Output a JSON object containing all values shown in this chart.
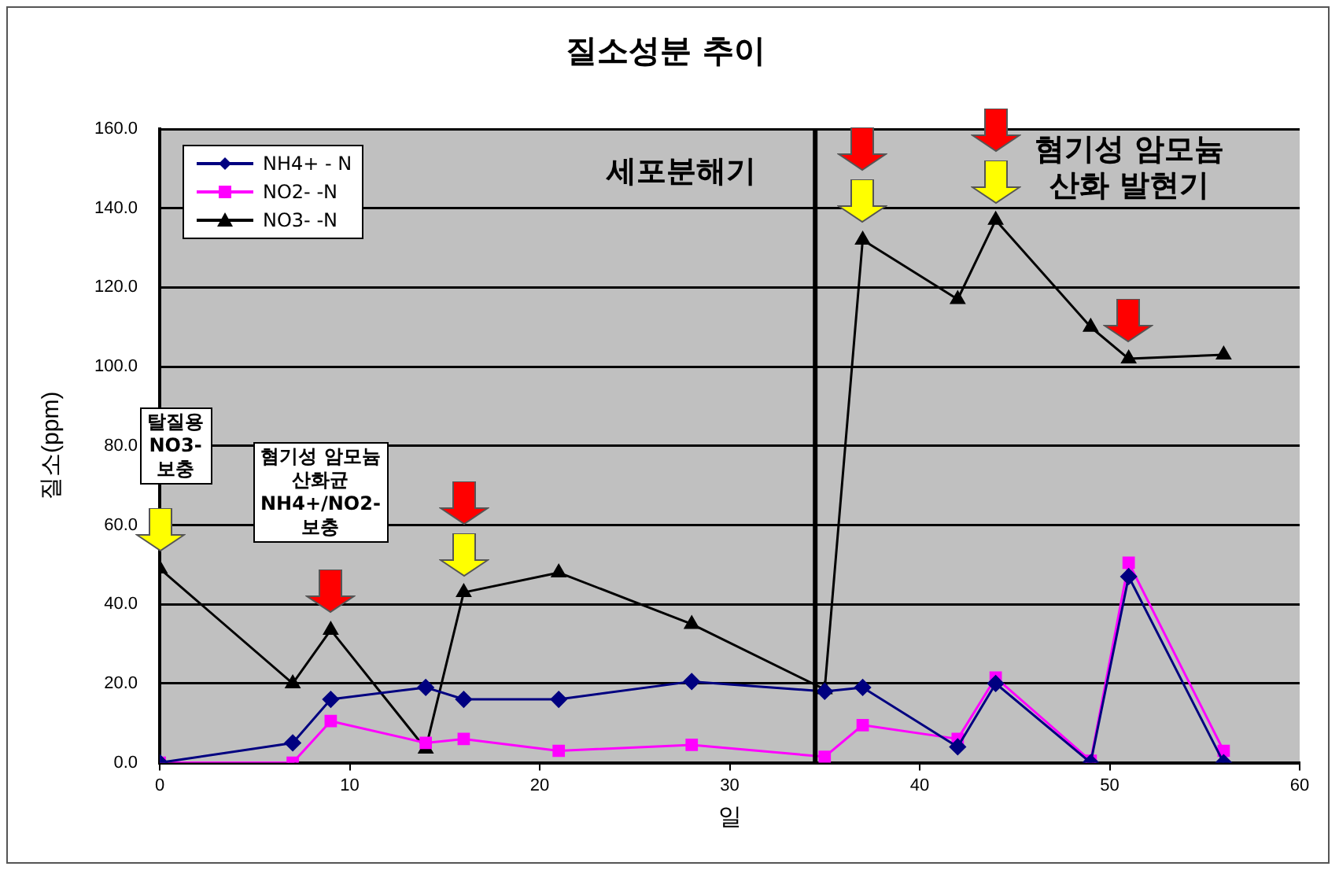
{
  "chart_data": {
    "type": "line",
    "title": "질소성분 추이",
    "xlabel": "일",
    "ylabel": "질소(ppm)",
    "x": [
      0,
      7,
      9,
      14,
      16,
      21,
      28,
      35,
      37,
      42,
      44,
      49,
      51,
      56
    ],
    "series": [
      {
        "name": "NH4+ - N",
        "color": "#000080",
        "marker": "diamond",
        "values": [
          0,
          5,
          16,
          19,
          16,
          16,
          20.5,
          18,
          19,
          4,
          20,
          0,
          47,
          0
        ]
      },
      {
        "name": "NO2- -N",
        "color": "#ff00ff",
        "marker": "square",
        "values": [
          0,
          0,
          10.5,
          5,
          6,
          3,
          4.5,
          1.5,
          9.5,
          6,
          21.5,
          0.5,
          50.5,
          3
        ]
      },
      {
        "name": "NO3- -N",
        "color": "#000000",
        "marker": "triangle",
        "values": [
          49,
          20,
          33.5,
          3.5,
          43,
          48,
          35,
          18.5,
          132,
          117,
          137,
          110,
          102,
          103
        ]
      }
    ],
    "xlim": [
      0,
      60
    ],
    "xticks": [
      0,
      10,
      20,
      30,
      40,
      50,
      60
    ],
    "ylim": [
      0,
      160
    ],
    "yticks": [
      {
        "value": 0,
        "label": "0.0"
      },
      {
        "value": 20,
        "label": "20.0"
      },
      {
        "value": 40,
        "label": "40.0"
      },
      {
        "value": 60,
        "label": "60.0"
      },
      {
        "value": 80,
        "label": "80.0"
      },
      {
        "value": 100,
        "label": "100.0"
      },
      {
        "value": 120,
        "label": "120.0"
      },
      {
        "value": 140,
        "label": "140.0"
      },
      {
        "value": 160,
        "label": "160.0"
      }
    ],
    "grid": "y",
    "legend": "top left",
    "line_style": "solid",
    "ref_lines": [
      {
        "axis": "x",
        "value": 34.5,
        "color": "#000000"
      }
    ],
    "annotations": [
      "탈질용\nNO3-\n보충",
      "혐기성 암모늄\n산화균\nNH4+/NO2-\n보충",
      "세포분해기",
      "혐기성 암모늄\n산화 발현기"
    ]
  }
}
